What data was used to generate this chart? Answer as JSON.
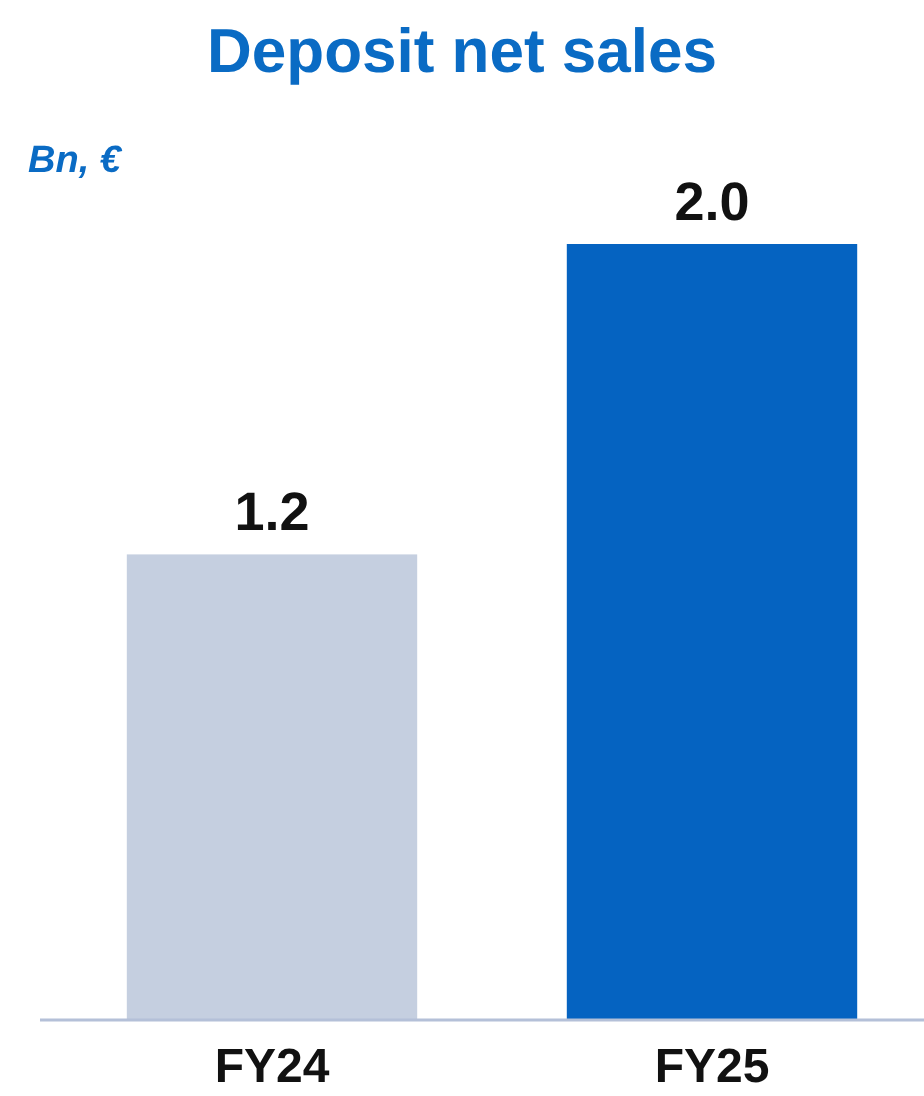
{
  "chart_data": {
    "type": "bar",
    "title": "Deposit net sales",
    "ylabel": "Bn, €",
    "categories": [
      "FY24",
      "FY25"
    ],
    "values": [
      1.2,
      2.0
    ],
    "value_labels": [
      "1.2",
      "2.0"
    ],
    "colors": [
      "#c5cfe0",
      "#0563c1"
    ]
  }
}
